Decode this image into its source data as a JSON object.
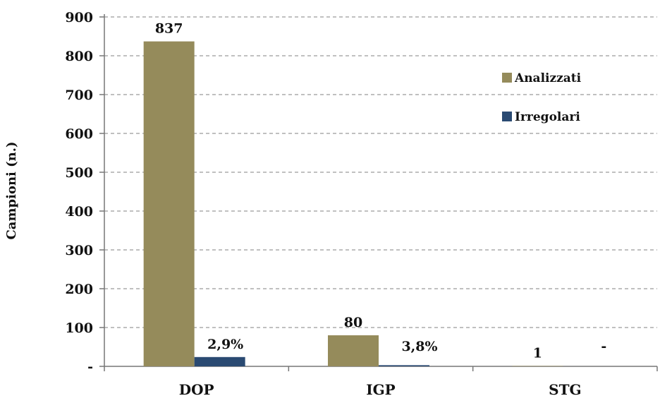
{
  "chart_data": {
    "type": "bar",
    "ylabel": "Campioni (n.)",
    "ylim": [
      0,
      900
    ],
    "y_ticks": [
      {
        "value": 0,
        "label": "-"
      },
      {
        "value": 100,
        "label": "100"
      },
      {
        "value": 200,
        "label": "200"
      },
      {
        "value": 300,
        "label": "300"
      },
      {
        "value": 400,
        "label": "400"
      },
      {
        "value": 500,
        "label": "500"
      },
      {
        "value": 600,
        "label": "600"
      },
      {
        "value": 700,
        "label": "700"
      },
      {
        "value": 800,
        "label": "800"
      },
      {
        "value": 900,
        "label": "900"
      }
    ],
    "grid": true,
    "categories": [
      "DOP",
      "IGP",
      "STG"
    ],
    "series": [
      {
        "name": "Analizzati",
        "color": "#958B5B",
        "values": [
          837,
          80,
          1
        ],
        "labels": [
          "837",
          "80",
          "1"
        ]
      },
      {
        "name": "Irregolari",
        "color": "#2A4A72",
        "values": [
          24,
          3,
          0
        ],
        "labels": [
          "2,9%",
          "3,8%",
          "-"
        ]
      }
    ],
    "legend_position": "top-right"
  }
}
